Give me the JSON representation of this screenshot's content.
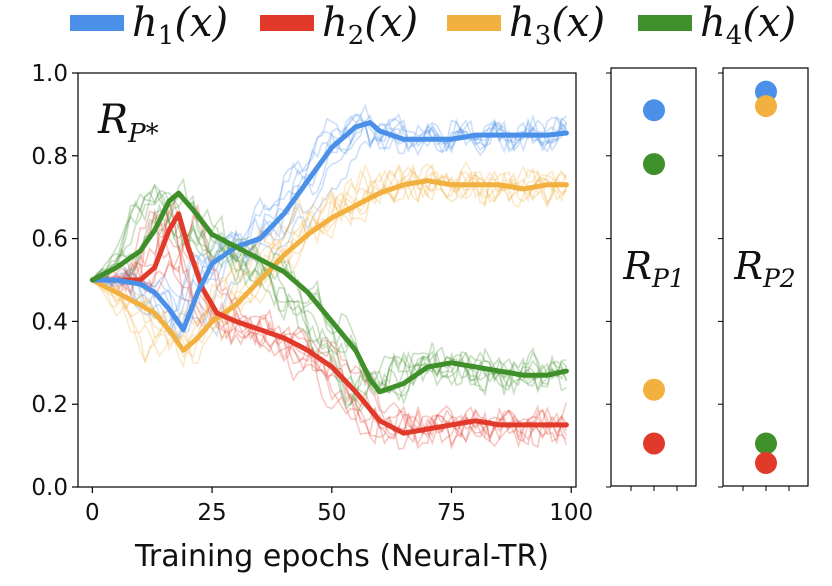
{
  "legend": [
    {
      "name": "h",
      "sub": "1",
      "arg": "(x)",
      "color": "#4a8fe8"
    },
    {
      "name": "h",
      "sub": "2",
      "arg": "(x)",
      "color": "#e23a2a"
    },
    {
      "name": "h",
      "sub": "3",
      "arg": "(x)",
      "color": "#f2b03f"
    },
    {
      "name": "h",
      "sub": "4",
      "arg": "(x)",
      "color": "#3f8f2a"
    }
  ],
  "chart_data": [
    {
      "type": "line",
      "panel_label": {
        "main": "R",
        "sub": "P*"
      },
      "xlabel": "Training epochs (Neural-TR)",
      "xlim": [
        -3,
        101
      ],
      "ylim": [
        0,
        1
      ],
      "xticks": [
        0,
        25,
        50,
        75,
        100
      ],
      "yticks": [
        0.0,
        0.2,
        0.4,
        0.6,
        0.8,
        1.0
      ],
      "ytick_labels": [
        "0.0",
        "0.2",
        "0.4",
        "0.6",
        "0.8",
        "1.0"
      ],
      "grid": false,
      "series": [
        {
          "legend_index": 0,
          "color": "#4a8fe8",
          "x": [
            0,
            5,
            10,
            13,
            16,
            19,
            22,
            25,
            30,
            35,
            40,
            45,
            50,
            55,
            58,
            60,
            65,
            70,
            75,
            80,
            85,
            90,
            95,
            99
          ],
          "y": [
            0.5,
            0.5,
            0.49,
            0.47,
            0.43,
            0.38,
            0.47,
            0.54,
            0.58,
            0.6,
            0.66,
            0.74,
            0.82,
            0.87,
            0.88,
            0.86,
            0.84,
            0.84,
            0.84,
            0.85,
            0.85,
            0.85,
            0.85,
            0.855
          ]
        },
        {
          "legend_index": 1,
          "color": "#e23a2a",
          "x": [
            0,
            5,
            10,
            13,
            16,
            18,
            20,
            23,
            26,
            30,
            35,
            40,
            45,
            50,
            55,
            60,
            65,
            70,
            75,
            80,
            85,
            90,
            95,
            99
          ],
          "y": [
            0.5,
            0.5,
            0.5,
            0.53,
            0.62,
            0.66,
            0.58,
            0.48,
            0.42,
            0.4,
            0.38,
            0.36,
            0.33,
            0.29,
            0.23,
            0.16,
            0.13,
            0.14,
            0.15,
            0.16,
            0.15,
            0.15,
            0.15,
            0.15
          ]
        },
        {
          "legend_index": 2,
          "color": "#f2b03f",
          "x": [
            0,
            5,
            10,
            13,
            16,
            19,
            22,
            25,
            30,
            35,
            40,
            45,
            50,
            55,
            60,
            65,
            70,
            75,
            80,
            85,
            90,
            95,
            99
          ],
          "y": [
            0.5,
            0.47,
            0.44,
            0.42,
            0.38,
            0.33,
            0.36,
            0.4,
            0.44,
            0.5,
            0.56,
            0.61,
            0.65,
            0.68,
            0.71,
            0.73,
            0.74,
            0.73,
            0.73,
            0.73,
            0.72,
            0.73,
            0.73
          ]
        },
        {
          "legend_index": 3,
          "color": "#3f8f2a",
          "x": [
            0,
            5,
            10,
            13,
            16,
            18,
            21,
            25,
            30,
            35,
            40,
            45,
            50,
            55,
            58,
            60,
            65,
            70,
            75,
            80,
            85,
            90,
            95,
            99
          ],
          "y": [
            0.5,
            0.53,
            0.57,
            0.62,
            0.69,
            0.71,
            0.67,
            0.61,
            0.58,
            0.55,
            0.52,
            0.47,
            0.4,
            0.33,
            0.26,
            0.23,
            0.25,
            0.29,
            0.3,
            0.29,
            0.28,
            0.27,
            0.27,
            0.28
          ]
        }
      ]
    },
    {
      "type": "scatter",
      "panel_label": {
        "main": "R",
        "sub": "P1"
      },
      "ylim": [
        0,
        1
      ],
      "points": [
        {
          "legend_index": 0,
          "y": 0.91,
          "color": "#4a8fe8"
        },
        {
          "legend_index": 3,
          "y": 0.78,
          "color": "#3f8f2a"
        },
        {
          "legend_index": 2,
          "y": 0.235,
          "color": "#f2b03f"
        },
        {
          "legend_index": 1,
          "y": 0.105,
          "color": "#e23a2a"
        }
      ]
    },
    {
      "type": "scatter",
      "panel_label": {
        "main": "R",
        "sub": "P2"
      },
      "ylim": [
        0,
        1
      ],
      "points": [
        {
          "legend_index": 0,
          "y": 0.955,
          "color": "#4a8fe8"
        },
        {
          "legend_index": 2,
          "y": 0.92,
          "color": "#f2b03f"
        },
        {
          "legend_index": 3,
          "y": 0.105,
          "color": "#3f8f2a"
        },
        {
          "legend_index": 1,
          "y": 0.058,
          "color": "#e23a2a"
        }
      ]
    }
  ]
}
